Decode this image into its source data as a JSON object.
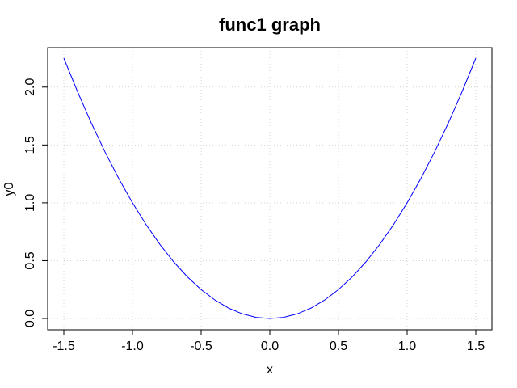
{
  "chart_data": {
    "type": "line",
    "title": "func1 graph",
    "xlabel": "x",
    "ylabel": "y0",
    "xlim": [
      -1.5,
      1.5
    ],
    "ylim": [
      0.0,
      2.25
    ],
    "x_ticks": [
      -1.5,
      -1.0,
      -0.5,
      0.0,
      0.5,
      1.0,
      1.5
    ],
    "x_tick_labels": [
      "-1.5",
      "-1.0",
      "-0.5",
      "0.0",
      "0.5",
      "1.0",
      "1.5"
    ],
    "y_ticks": [
      0.0,
      0.5,
      1.0,
      1.5,
      2.0
    ],
    "y_tick_labels": [
      "0.0",
      "0.5",
      "1.0",
      "1.5",
      "2.0"
    ],
    "grid": true,
    "series": [
      {
        "color": "#0000ff",
        "x": [
          -1.5,
          -1.4,
          -1.3,
          -1.2,
          -1.1,
          -1.0,
          -0.9,
          -0.8,
          -0.7,
          -0.6,
          -0.5,
          -0.4,
          -0.3,
          -0.2,
          -0.1,
          0.0,
          0.1,
          0.2,
          0.3,
          0.4,
          0.5,
          0.6,
          0.7,
          0.8,
          0.9,
          1.0,
          1.1,
          1.2,
          1.3,
          1.4,
          1.5
        ],
        "y": [
          2.25,
          1.96,
          1.69,
          1.44,
          1.21,
          1.0,
          0.81,
          0.64,
          0.49,
          0.36,
          0.25,
          0.16,
          0.09,
          0.04,
          0.01,
          0.0,
          0.01,
          0.04,
          0.09,
          0.16,
          0.25,
          0.36,
          0.49,
          0.64,
          0.81,
          1.0,
          1.21,
          1.44,
          1.69,
          1.96,
          2.25
        ]
      }
    ],
    "colors": {
      "line": "#0000ff",
      "grid": "#d3d3d3",
      "axis": "#000000"
    }
  }
}
